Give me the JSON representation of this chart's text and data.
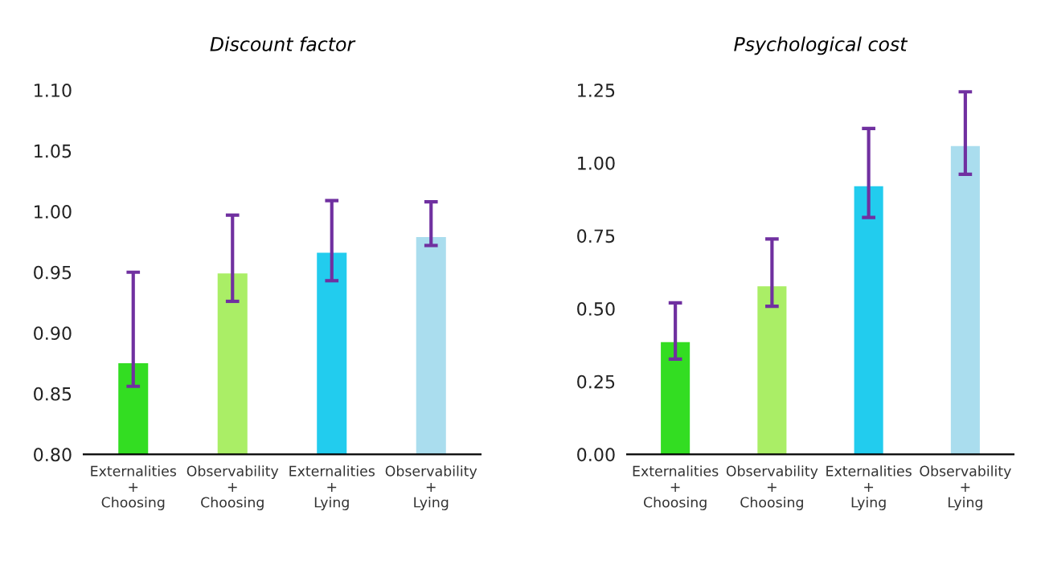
{
  "chart_data": [
    {
      "type": "bar",
      "title": "Discount factor",
      "categories": [
        "Externalities\n+\nChoosing",
        "Observability\n+\nChoosing",
        "Externalities\n+\nLying",
        "Observability\n+\nLying"
      ],
      "values": [
        0.875,
        0.949,
        0.966,
        0.979
      ],
      "colors": [
        "#33dd22",
        "#aaee66",
        "#22ccee",
        "#aaddee"
      ],
      "errors": [
        [
          0.856,
          0.95
        ],
        [
          0.926,
          0.997
        ],
        [
          0.943,
          1.009
        ],
        [
          0.972,
          1.008
        ]
      ],
      "ylim": [
        0.8,
        1.1
      ],
      "yticks": [
        {
          "value": 0.8,
          "label": "0.80"
        },
        {
          "value": 0.85,
          "label": "0.85"
        },
        {
          "value": 0.9,
          "label": "0.90"
        },
        {
          "value": 0.95,
          "label": "0.95"
        },
        {
          "value": 1.0,
          "label": "1.00"
        },
        {
          "value": 1.05,
          "label": "1.05"
        },
        {
          "value": 1.1,
          "label": "1.10"
        }
      ],
      "grid": false,
      "legend": false
    },
    {
      "type": "bar",
      "title": "Psychological cost",
      "categories": [
        "Externalities\n+\nChoosing",
        "Observability\n+\nChoosing",
        "Externalities\n+\nLying",
        "Observability\n+\nLying"
      ],
      "values": [
        0.385,
        0.577,
        0.92,
        1.058
      ],
      "colors": [
        "#33dd22",
        "#aaee66",
        "#22ccee",
        "#aaddee"
      ],
      "errors": [
        [
          0.327,
          0.52
        ],
        [
          0.508,
          0.739
        ],
        [
          0.813,
          1.118
        ],
        [
          0.961,
          1.244
        ]
      ],
      "ylim": [
        0,
        1.25
      ],
      "yticks": [
        {
          "value": 0,
          "label": "0.00"
        },
        {
          "value": 0.25,
          "label": "0.25"
        },
        {
          "value": 0.5,
          "label": "0.50"
        },
        {
          "value": 0.75,
          "label": "0.75"
        },
        {
          "value": 1.0,
          "label": "1.00"
        },
        {
          "value": 1.25,
          "label": "1.25"
        }
      ],
      "grid": false,
      "legend": false
    }
  ]
}
